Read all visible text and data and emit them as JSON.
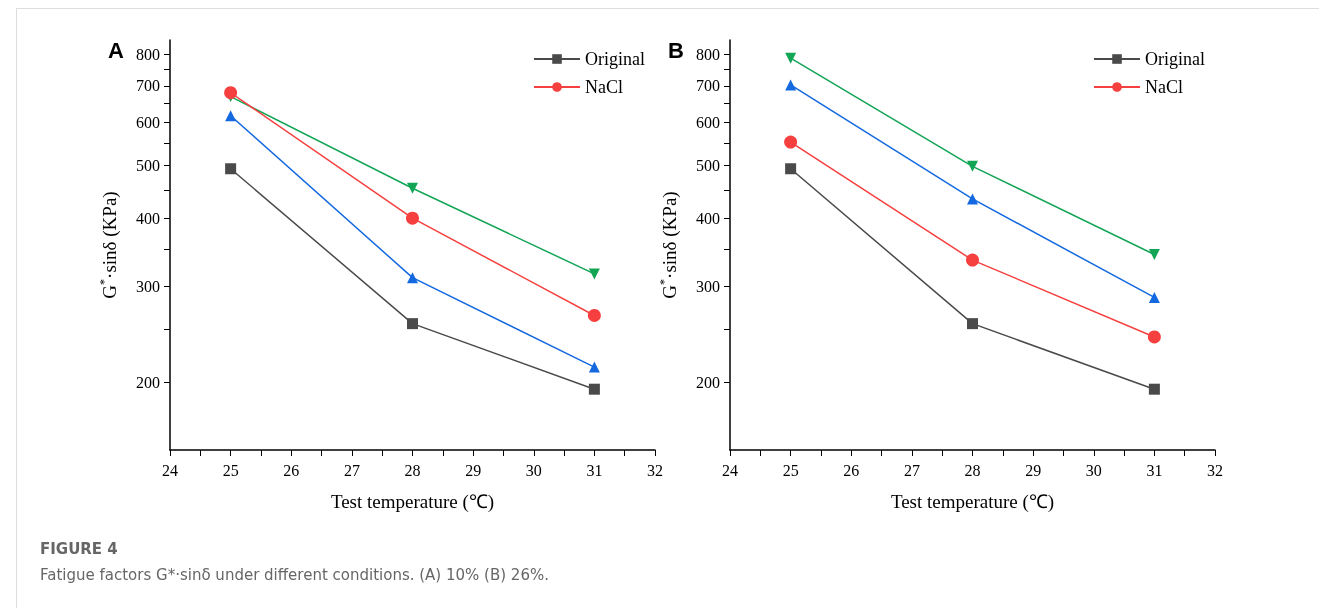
{
  "chart_data": [
    {
      "type": "line",
      "annotations": [
        "A",
        "FIGURE 4",
        "Fatigue factors G*·sinδ under different conditions. (A) 10% (B) 26%."
      ],
      "xlabel": "Test temperature (℃)",
      "ylabel": "G$^{*}$·sinδ (KPa)",
      "log": "y",
      "xlim": [
        24,
        32
      ],
      "xticks": [
        24,
        {
          "value": 24.5,
          "label": null
        },
        25,
        {
          "value": 25.5,
          "label": null
        },
        26,
        {
          "value": 26.5,
          "label": null
        },
        27,
        {
          "value": 27.5,
          "label": null
        },
        28,
        {
          "value": 28.5,
          "label": null
        },
        29,
        {
          "value": 29.5,
          "label": null
        },
        30,
        {
          "value": 30.5,
          "label": null
        },
        31,
        {
          "value": 31.5,
          "label": null
        },
        32
      ],
      "ylim": [
        150,
        850
      ],
      "yticks": [
        200,
        {
          "value": 250,
          "label": null
        },
        300,
        {
          "value": 350,
          "label": null
        },
        400,
        {
          "value": 450,
          "label": null
        },
        500,
        {
          "value": 550,
          "label": null
        },
        600,
        {
          "value": 650,
          "label": null
        },
        700,
        {
          "value": 750,
          "label": null
        },
        800
      ],
      "grid": false,
      "legend": "top right",
      "line_style": "solid",
      "x": [
        25,
        28,
        31
      ],
      "series": [
        {
          "name": "Original",
          "color": "#4a4a4a",
          "marker": "square",
          "values": [
            493,
            256,
            194
          ]
        },
        {
          "name": "NaCl",
          "color": "#f5403f",
          "marker": "circle",
          "values": [
            680,
            400,
            265
          ]
        },
        {
          "color": "#1469e0",
          "marker": "triangle",
          "values": [
            617,
            311,
            213
          ]
        },
        {
          "color": "#13a556",
          "marker": "triangle-down",
          "values": [
            669,
            454,
            316
          ]
        }
      ]
    },
    {
      "type": "line",
      "annotations": [
        "B"
      ],
      "xlabel": "Test temperature (℃)",
      "ylabel": "G$^{*}$·sinδ (KPa)",
      "log": "y",
      "xlim": [
        24,
        32
      ],
      "xticks": [
        24,
        {
          "value": 24.5,
          "label": null
        },
        25,
        {
          "value": 25.5,
          "label": null
        },
        26,
        {
          "value": 26.5,
          "label": null
        },
        27,
        {
          "value": 27.5,
          "label": null
        },
        28,
        {
          "value": 28.5,
          "label": null
        },
        29,
        {
          "value": 29.5,
          "label": null
        },
        30,
        {
          "value": 30.5,
          "label": null
        },
        31,
        {
          "value": 31.5,
          "label": null
        },
        32
      ],
      "ylim": [
        150,
        850
      ],
      "yticks": [
        200,
        {
          "value": 250,
          "label": null
        },
        300,
        {
          "value": 350,
          "label": null
        },
        400,
        {
          "value": 450,
          "label": null
        },
        500,
        {
          "value": 550,
          "label": null
        },
        600,
        {
          "value": 650,
          "label": null
        },
        700,
        {
          "value": 750,
          "label": null
        },
        800
      ],
      "grid": false,
      "legend": "top right",
      "line_style": "solid",
      "x": [
        25,
        28,
        31
      ],
      "series": [
        {
          "name": "Original",
          "color": "#4a4a4a",
          "marker": "square",
          "values": [
            493,
            256,
            194
          ]
        },
        {
          "name": "NaCl",
          "color": "#f5403f",
          "marker": "circle",
          "values": [
            552,
            335,
            242
          ]
        },
        {
          "color": "#1469e0",
          "marker": "triangle",
          "values": [
            703,
            434,
            286
          ]
        },
        {
          "color": "#13a556",
          "marker": "triangle-down",
          "values": [
            787,
            498,
            343
          ]
        }
      ]
    }
  ]
}
